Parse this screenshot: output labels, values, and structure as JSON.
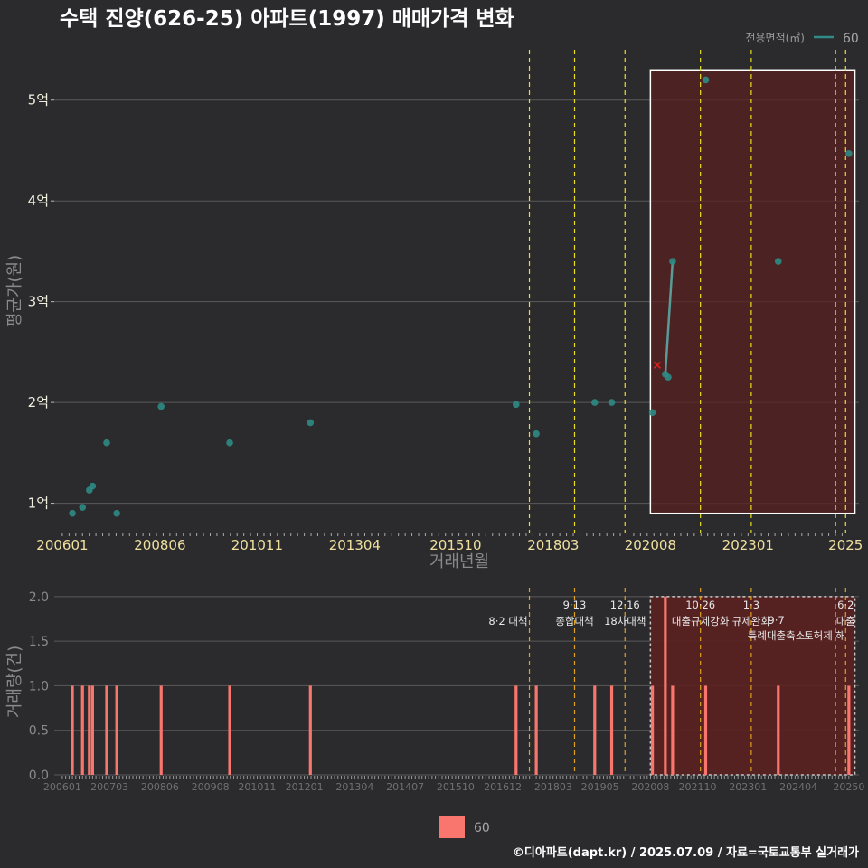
{
  "title": "수택 진양(626-25) 아파트(1997) 매매가격 변화",
  "caption": "©디아파트(dapt.kr) / 2025.07.09 / 자료=국토교통부 실거래가",
  "colors": {
    "background": "#2b2b2d",
    "grid": "#5a5a5a",
    "point": "#2e8b85",
    "line": "#5a9b98",
    "bar": "#f8766d",
    "policy_line_top": "#e8e020",
    "policy_line_bottom": "#e0a020",
    "highlight_fill": "#5a2020",
    "highlight_border": "#ffffff",
    "cancel_marker": "#e02020"
  },
  "chart_data": [
    {
      "id": "price",
      "type": "scatter",
      "xlabel": "거래년월",
      "ylabel": "평균가(원)",
      "xlim": [
        2005.8,
        2025.75
      ],
      "ylim": [
        0.7,
        5.5
      ],
      "y_ticks": [
        {
          "v": 1,
          "label": "1억"
        },
        {
          "v": 2,
          "label": "2억"
        },
        {
          "v": 3,
          "label": "3억"
        },
        {
          "v": 4,
          "label": "4억"
        },
        {
          "v": 5,
          "label": "5억"
        }
      ],
      "x_ticks": [
        {
          "v": 2006.0,
          "label": "200601"
        },
        {
          "v": 2008.42,
          "label": "200806"
        },
        {
          "v": 2010.83,
          "label": "201011"
        },
        {
          "v": 2013.25,
          "label": "201304"
        },
        {
          "v": 2015.75,
          "label": "201510"
        },
        {
          "v": 2018.17,
          "label": "201803"
        },
        {
          "v": 2020.58,
          "label": "202008"
        },
        {
          "v": 2023.0,
          "label": "202301"
        },
        {
          "v": 2025.42,
          "label": "2025"
        }
      ],
      "legend": {
        "title": "전용면적(㎡)",
        "entries": [
          "60"
        ]
      },
      "points": [
        {
          "x": 2006.25,
          "y": 0.9
        },
        {
          "x": 2006.5,
          "y": 0.96
        },
        {
          "x": 2006.67,
          "y": 1.13
        },
        {
          "x": 2006.75,
          "y": 1.17
        },
        {
          "x": 2007.1,
          "y": 1.6
        },
        {
          "x": 2007.35,
          "y": 0.9
        },
        {
          "x": 2008.45,
          "y": 1.96
        },
        {
          "x": 2010.15,
          "y": 1.6
        },
        {
          "x": 2012.15,
          "y": 1.8
        },
        {
          "x": 2017.25,
          "y": 1.98
        },
        {
          "x": 2017.75,
          "y": 1.69
        },
        {
          "x": 2019.2,
          "y": 2.0
        },
        {
          "x": 2019.62,
          "y": 2.0
        },
        {
          "x": 2020.63,
          "y": 1.9
        },
        {
          "x": 2020.95,
          "y": 2.28
        },
        {
          "x": 2021.02,
          "y": 2.25
        },
        {
          "x": 2021.13,
          "y": 3.4
        },
        {
          "x": 2021.95,
          "y": 5.2
        },
        {
          "x": 2023.75,
          "y": 3.4
        },
        {
          "x": 2025.5,
          "y": 4.47
        }
      ],
      "line_segment": [
        {
          "x": 2020.95,
          "y": 2.28
        },
        {
          "x": 2021.13,
          "y": 3.4
        }
      ],
      "cancelled": [
        {
          "x": 2020.75,
          "y": 2.37
        }
      ],
      "policy_lines": [
        2017.58,
        2018.7,
        2019.95,
        2021.82,
        2023.08,
        2025.17,
        2025.42
      ],
      "highlight": {
        "x_from": 2020.58,
        "x_to": 2025.65,
        "y_from": 0.9,
        "y_to": 5.3
      }
    },
    {
      "id": "volume",
      "type": "bar",
      "xlabel": "",
      "ylabel": "거래량(건)",
      "xlim": [
        2005.8,
        2025.75
      ],
      "ylim": [
        0,
        2.1
      ],
      "y_ticks": [
        {
          "v": 0,
          "label": "0.0"
        },
        {
          "v": 0.5,
          "label": "0.5"
        },
        {
          "v": 1.0,
          "label": "1.0"
        },
        {
          "v": 1.5,
          "label": "1.5"
        },
        {
          "v": 2.0,
          "label": "2.0"
        }
      ],
      "x_ticks": [
        {
          "v": 2006.0,
          "label": "200601"
        },
        {
          "v": 2007.17,
          "label": "200703"
        },
        {
          "v": 2008.42,
          "label": "200806"
        },
        {
          "v": 2009.67,
          "label": "200908"
        },
        {
          "v": 2010.83,
          "label": "201011"
        },
        {
          "v": 2012.0,
          "label": "201201"
        },
        {
          "v": 2013.25,
          "label": "201304"
        },
        {
          "v": 2014.5,
          "label": "201407"
        },
        {
          "v": 2015.75,
          "label": "201510"
        },
        {
          "v": 2016.92,
          "label": "201612"
        },
        {
          "v": 2018.17,
          "label": "201803"
        },
        {
          "v": 2019.33,
          "label": "201905"
        },
        {
          "v": 2020.58,
          "label": "202008"
        },
        {
          "v": 2021.75,
          "label": "202110"
        },
        {
          "v": 2023.0,
          "label": "202301"
        },
        {
          "v": 2024.25,
          "label": "202404"
        },
        {
          "v": 2025.5,
          "label": "20250"
        }
      ],
      "legend": {
        "entries": [
          "60"
        ]
      },
      "bars": [
        {
          "x": 2006.25,
          "v": 1
        },
        {
          "x": 2006.5,
          "v": 1
        },
        {
          "x": 2006.67,
          "v": 1
        },
        {
          "x": 2006.75,
          "v": 1
        },
        {
          "x": 2007.1,
          "v": 1
        },
        {
          "x": 2007.35,
          "v": 1
        },
        {
          "x": 2008.45,
          "v": 1
        },
        {
          "x": 2010.15,
          "v": 1
        },
        {
          "x": 2012.15,
          "v": 1
        },
        {
          "x": 2017.25,
          "v": 1
        },
        {
          "x": 2017.75,
          "v": 1
        },
        {
          "x": 2019.2,
          "v": 1
        },
        {
          "x": 2019.62,
          "v": 1
        },
        {
          "x": 2020.63,
          "v": 1
        },
        {
          "x": 2020.95,
          "v": 2
        },
        {
          "x": 2021.13,
          "v": 1
        },
        {
          "x": 2021.95,
          "v": 1
        },
        {
          "x": 2023.75,
          "v": 1
        },
        {
          "x": 2025.5,
          "v": 1
        }
      ],
      "policy_lines": [
        2017.58,
        2018.7,
        2019.95,
        2021.82,
        2023.08,
        2025.17,
        2025.42
      ],
      "highlight": {
        "x_from": 2020.58,
        "x_to": 2025.65
      },
      "annotations": [
        {
          "x": 2017.58,
          "date": "",
          "text": "8·2 대책",
          "anchor": "end",
          "row": 1
        },
        {
          "x": 2018.7,
          "date": "9·13",
          "text": "종합대책",
          "anchor": "middle",
          "row": 1
        },
        {
          "x": 2019.95,
          "date": "12·16",
          "text": "18차대책",
          "anchor": "middle",
          "row": 1
        },
        {
          "x": 2021.82,
          "date": "10·26",
          "text": "대출규제강화",
          "anchor": "middle",
          "row": 1
        },
        {
          "x": 2023.08,
          "date": "1·3",
          "text": "규제완화",
          "anchor": "middle",
          "row": 1
        },
        {
          "x": 2023.7,
          "date": "9·7",
          "text": "특례대출축소",
          "anchor": "middle",
          "row": 2
        },
        {
          "x": 2024.9,
          "date": "",
          "text": "토허제 해",
          "anchor": "middle",
          "row": 2
        },
        {
          "x": 2025.42,
          "date": "6·2",
          "text": "대출",
          "anchor": "middle",
          "row": 1
        }
      ]
    }
  ]
}
